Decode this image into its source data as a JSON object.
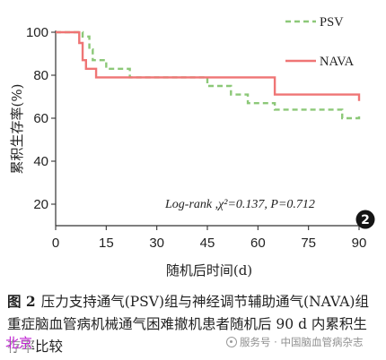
{
  "chart_data": {
    "type": "line",
    "xlabel": "随机后时间(d)",
    "ylabel": "累积生存率(%)",
    "xlim": [
      0,
      90
    ],
    "ylim": [
      10,
      100
    ],
    "xticks": [
      0,
      15,
      30,
      45,
      60,
      75,
      90
    ],
    "yticks": [
      20,
      40,
      60,
      80,
      100
    ],
    "grid": false,
    "legend_position": "top-right",
    "annotation": "Log-rank ,χ²=0.137, P=0.712",
    "badge": "2",
    "series": [
      {
        "name": "PSV",
        "color": "#8cc878",
        "style": "dashed",
        "step_x": [
          0,
          7,
          8,
          10,
          11,
          15,
          22,
          45,
          52,
          57,
          65,
          85,
          90
        ],
        "step_y": [
          100,
          100,
          98,
          92,
          87,
          83,
          79,
          75,
          71,
          67,
          64,
          60,
          62
        ]
      },
      {
        "name": "NAVA",
        "color": "#ef7575",
        "style": "solid",
        "step_x": [
          0,
          6,
          7,
          8,
          9,
          12,
          65,
          90
        ],
        "step_y": [
          100,
          100,
          95,
          87,
          83,
          79,
          71,
          68
        ]
      }
    ]
  },
  "caption": {
    "label": "图 2",
    "text": "压力支持通气(PSV)组与神经调节辅助通气(NAVA)组重症脑血管病机械通气困难撤机患者随机后 90 d 内累积生存率比较"
  },
  "watermark": {
    "left": "北京",
    "right": "服务号 · 中国脑血管病杂志"
  }
}
